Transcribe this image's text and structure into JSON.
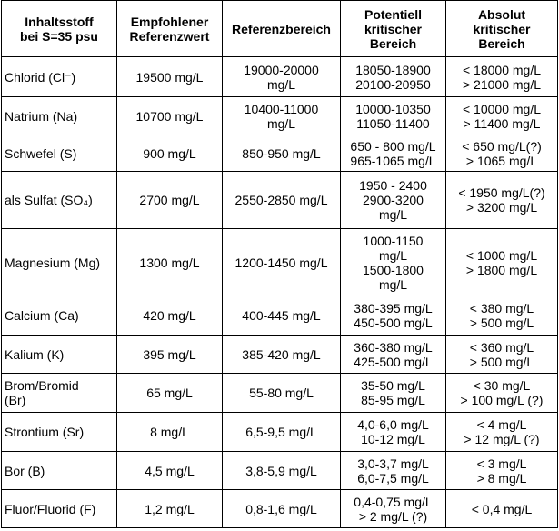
{
  "table": {
    "header": [
      [
        "Inhaltsstoff",
        "bei S=35 psu"
      ],
      [
        "Empfohlener",
        "Referenzwert"
      ],
      [
        "Referenzbereich"
      ],
      [
        "Potentiell",
        "kritischer",
        "Bereich"
      ],
      [
        "Absolut",
        "kritischer",
        "Bereich"
      ]
    ],
    "rows": [
      [
        [
          "Chlorid (Cl⁻)"
        ],
        [
          "19500 mg/L"
        ],
        [
          "19000-20000",
          "mg/L"
        ],
        [
          "18050-18900",
          "20100-20950"
        ],
        [
          "< 18000 mg/L",
          "> 21000 mg/L"
        ]
      ],
      [
        [
          "Natrium (Na)"
        ],
        [
          "10700 mg/L"
        ],
        [
          "10400-11000",
          "mg/L"
        ],
        [
          "10000-10350",
          "11050-11400"
        ],
        [
          "< 10000 mg/L",
          "> 11400 mg/L"
        ]
      ],
      [
        [
          "Schwefel (S)"
        ],
        [
          "900 mg/L"
        ],
        [
          "850-950 mg/L"
        ],
        [
          "650 - 800 mg/L",
          "965-1065 mg/L"
        ],
        [
          "< 650 mg/L(?)",
          "> 1065 mg/L"
        ]
      ],
      [
        [
          "als Sulfat (SO₄)"
        ],
        [
          "2700 mg/L"
        ],
        [
          "2550-2850 mg/L"
        ],
        [
          "1950 - 2400",
          "2900-3200",
          "mg/L"
        ],
        [
          "< 1950 mg/L(?)",
          "> 3200 mg/L"
        ]
      ],
      [
        [
          "Magnesium (Mg)"
        ],
        [
          "1300 mg/L"
        ],
        [
          "1200-1450 mg/L"
        ],
        [
          "1000-1150",
          "mg/L",
          "1500-1800",
          "mg/L"
        ],
        [
          "< 1000 mg/L",
          "> 1800 mg/L"
        ]
      ],
      [
        [
          "Calcium (Ca)"
        ],
        [
          "420 mg/L"
        ],
        [
          "400-445 mg/L"
        ],
        [
          "380-395 mg/L",
          "450-500 mg/L"
        ],
        [
          "< 380 mg/L",
          "> 500 mg/L"
        ]
      ],
      [
        [
          "Kalium (K)"
        ],
        [
          "395 mg/L"
        ],
        [
          "385-420 mg/L"
        ],
        [
          "360-380 mg/L",
          "425-500 mg/L"
        ],
        [
          "< 360 mg/L",
          "> 500 mg/L"
        ]
      ],
      [
        [
          "Brom/Bromid",
          "(Br)"
        ],
        [
          "65 mg/L"
        ],
        [
          "55-80 mg/L"
        ],
        [
          "35-50 mg/L",
          "85-95 mg/L"
        ],
        [
          "< 30 mg/L",
          "> 100 mg/L (?)"
        ]
      ],
      [
        [
          "Strontium (Sr)"
        ],
        [
          "8 mg/L"
        ],
        [
          "6,5-9,5 mg/L"
        ],
        [
          "4,0-6,0 mg/L",
          "10-12 mg/L"
        ],
        [
          "< 4 mg/L",
          "> 12 mg/L (?)"
        ]
      ],
      [
        [
          "Bor (B)"
        ],
        [
          "4,5 mg/L"
        ],
        [
          "3,8-5,9 mg/L"
        ],
        [
          "3,0-3,7 mg/L",
          "6,0-7,5 mg/L"
        ],
        [
          "< 3 mg/L",
          "> 8 mg/L"
        ]
      ],
      [
        [
          "Fluor/Fluorid (F)"
        ],
        [
          "1,2 mg/L"
        ],
        [
          "0,8-1,6 mg/L"
        ],
        [
          "0,4-0,75 mg/L",
          "> 2 mg/L (?)"
        ],
        [
          "< 0,4 mg/L"
        ]
      ]
    ]
  }
}
